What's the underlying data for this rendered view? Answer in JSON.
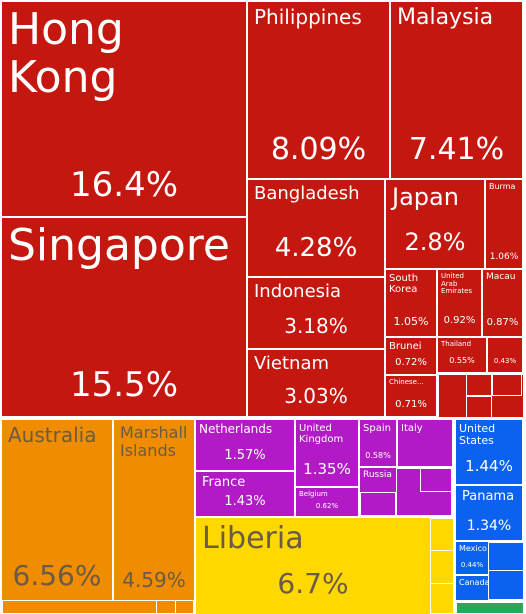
{
  "chart_data": {
    "type": "treemap",
    "categories": [
      "Hong Kong",
      "Singapore",
      "Philippines",
      "Malaysia",
      "Bangladesh",
      "Indonesia",
      "Vietnam",
      "Japan",
      "Burma",
      "South Korea",
      "United Arab Emirates",
      "Macau",
      "Brunei",
      "Thailand",
      null,
      "Chinese...",
      "Australia",
      "Marshall Islands",
      "Netherlands",
      "France",
      "United Kingdom",
      "Belgium",
      "Spain",
      "Italy",
      "Russia",
      "Liberia",
      "United States",
      "Panama",
      "Mexico",
      "Canada"
    ],
    "values": [
      16.4,
      15.5,
      8.09,
      7.41,
      4.28,
      3.18,
      3.03,
      2.8,
      1.06,
      1.05,
      0.92,
      0.87,
      0.72,
      0.55,
      0.43,
      0.71,
      6.56,
      4.59,
      1.57,
      1.43,
      1.35,
      0.62,
      0.58,
      0.5,
      0.3,
      6.7,
      1.44,
      1.34,
      0.44,
      0.3
    ],
    "value_labels": [
      "16.4%",
      "15.5%",
      "8.09%",
      "7.41%",
      "4.28%",
      "3.18%",
      "3.03%",
      "2.8%",
      "1.06%",
      "1.05%",
      "0.92%",
      "0.87%",
      "0.72%",
      "0.55%",
      "0.43%",
      "0.71%",
      "6.56%",
      "4.59%",
      "1.57%",
      "1.43%",
      "1.35%",
      "0.62%",
      "0.58%",
      null,
      null,
      "6.7%",
      "1.44%",
      "1.34%",
      "0.44%",
      null
    ],
    "colors": [
      "#c4170f",
      "#c4170f",
      "#c4170f",
      "#c4170f",
      "#c4170f",
      "#c4170f",
      "#c4170f",
      "#c4170f",
      "#c4170f",
      "#c4170f",
      "#c4170f",
      "#c4170f",
      "#c4170f",
      "#c4170f",
      "#c4170f",
      "#c4170f",
      "#f08c00",
      "#f08c00",
      "#b21ac6",
      "#b21ac6",
      "#b21ac6",
      "#b21ac6",
      "#b21ac6",
      "#b21ac6",
      "#b21ac6",
      "#ffd800",
      "#0b62f0",
      "#0b62f0",
      "#0b62f0",
      "#0b62f0"
    ]
  }
}
